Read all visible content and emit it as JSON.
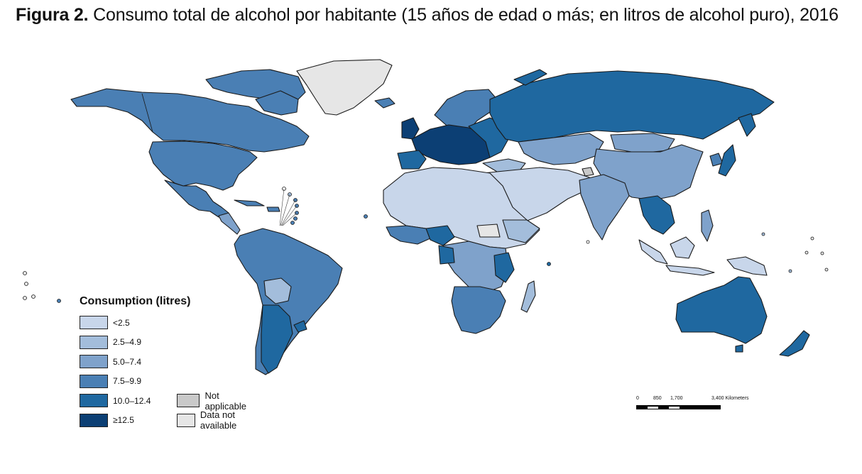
{
  "figure": {
    "label": "Figura 2.",
    "title": "Consumo total de alcohol por habitante (15 años de edad o más; en litros de alcohol puro), 2016"
  },
  "colors": {
    "lt2_5": "#c8d6ea",
    "c2_5_4_9": "#a3bddb",
    "c5_0_7_4": "#7fa2cb",
    "c7_5_9_9": "#4a7fb4",
    "c10_0_12_4": "#1f68a0",
    "ge12_5": "#0c3f74",
    "not_applicable": "#c9c9c9",
    "data_not_available": "#e6e6e6"
  },
  "legend": {
    "title": "Consumption (litres)",
    "items": [
      {
        "label": "<2.5",
        "color": "#c8d6ea"
      },
      {
        "label": "2.5–4.9",
        "color": "#a3bddb"
      },
      {
        "label": "5.0–7.4",
        "color": "#7fa2cb"
      },
      {
        "label": "7.5–9.9",
        "color": "#4a7fb4"
      },
      {
        "label": "10.0–12.4",
        "color": "#1f68a0"
      },
      {
        "label": "≥12.5",
        "color": "#0c3f74"
      }
    ],
    "extra": [
      {
        "label": "Not applicable",
        "color": "#c9c9c9"
      },
      {
        "label": "Data not available",
        "color": "#e6e6e6"
      }
    ]
  },
  "scale_bar": {
    "ticks": [
      "0",
      "850",
      "1,700",
      "3,400 Kilometers"
    ]
  }
}
